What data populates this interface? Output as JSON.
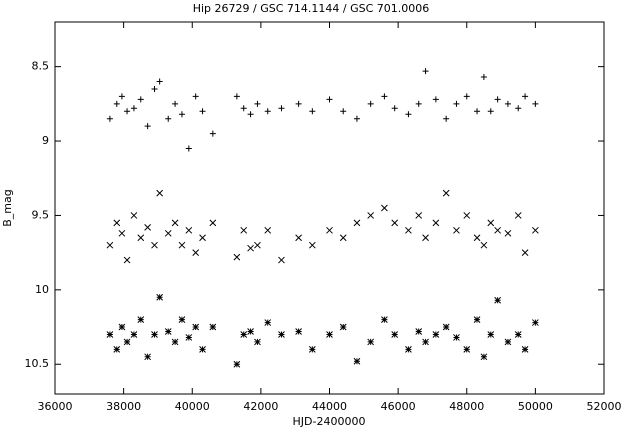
{
  "chart_data": {
    "type": "scatter",
    "title": "Hip 26729 / GSC 714.1144 / GSC 701.0006",
    "xlabel": "HJD-2400000",
    "ylabel": "B_mag",
    "xlim": [
      36000,
      52000
    ],
    "xticks": [
      36000,
      38000,
      40000,
      42000,
      44000,
      46000,
      48000,
      50000,
      52000
    ],
    "ylim": [
      8.2,
      10.7
    ],
    "yticks": [
      8.5,
      9,
      9.5,
      10,
      10.5
    ],
    "y_inverted": true,
    "grid": false,
    "series": [
      {
        "marker": "plus",
        "color": "#000000",
        "x": [
          37600,
          37800,
          37950,
          38100,
          38300,
          38500,
          38700,
          38900,
          39050,
          39300,
          39500,
          39700,
          39900,
          40100,
          40300,
          40600,
          41300,
          41500,
          41700,
          41900,
          42200,
          42600,
          43100,
          43500,
          44000,
          44400,
          44800,
          45200,
          45600,
          45900,
          46300,
          46600,
          46800,
          47100,
          47400,
          47700,
          48000,
          48300,
          48500,
          48700,
          48900,
          49200,
          49500,
          49700,
          50000
        ],
        "values": [
          8.85,
          8.75,
          8.7,
          8.8,
          8.78,
          8.72,
          8.9,
          8.65,
          8.6,
          8.85,
          8.75,
          8.82,
          9.05,
          8.7,
          8.8,
          8.95,
          8.7,
          8.78,
          8.82,
          8.75,
          8.8,
          8.78,
          8.75,
          8.8,
          8.72,
          8.8,
          8.85,
          8.75,
          8.7,
          8.78,
          8.82,
          8.75,
          8.53,
          8.72,
          8.85,
          8.75,
          8.7,
          8.8,
          8.57,
          8.8,
          8.72,
          8.75,
          8.78,
          8.7,
          8.75
        ]
      },
      {
        "marker": "cross",
        "color": "#000000",
        "x": [
          37600,
          37800,
          37950,
          38100,
          38300,
          38500,
          38700,
          38900,
          39050,
          39300,
          39500,
          39700,
          39900,
          40100,
          40300,
          40600,
          41300,
          41500,
          41700,
          41900,
          42200,
          42600,
          43100,
          43500,
          44000,
          44400,
          44800,
          45200,
          45600,
          45900,
          46300,
          46600,
          46800,
          47100,
          47400,
          47700,
          48000,
          48300,
          48500,
          48700,
          48900,
          49200,
          49500,
          49700,
          50000
        ],
        "values": [
          9.7,
          9.55,
          9.62,
          9.8,
          9.5,
          9.65,
          9.58,
          9.7,
          9.35,
          9.62,
          9.55,
          9.7,
          9.6,
          9.75,
          9.65,
          9.55,
          9.78,
          9.6,
          9.72,
          9.7,
          9.6,
          9.8,
          9.65,
          9.7,
          9.6,
          9.65,
          9.55,
          9.5,
          9.45,
          9.55,
          9.6,
          9.5,
          9.65,
          9.55,
          9.35,
          9.6,
          9.5,
          9.65,
          9.7,
          9.55,
          9.6,
          9.62,
          9.5,
          9.75,
          9.6
        ]
      },
      {
        "marker": "star",
        "color": "#000000",
        "x": [
          37600,
          37800,
          37950,
          38100,
          38300,
          38500,
          38700,
          38900,
          39050,
          39300,
          39500,
          39700,
          39900,
          40100,
          40300,
          40600,
          41300,
          41500,
          41700,
          41900,
          42200,
          42600,
          43100,
          43500,
          44000,
          44400,
          44800,
          45200,
          45600,
          45900,
          46300,
          46600,
          46800,
          47100,
          47400,
          47700,
          48000,
          48300,
          48500,
          48700,
          48900,
          49200,
          49500,
          49700,
          50000
        ],
        "values": [
          10.3,
          10.4,
          10.25,
          10.35,
          10.3,
          10.2,
          10.45,
          10.3,
          10.05,
          10.28,
          10.35,
          10.2,
          10.32,
          10.25,
          10.4,
          10.25,
          10.5,
          10.3,
          10.28,
          10.35,
          10.22,
          10.3,
          10.28,
          10.4,
          10.3,
          10.25,
          10.48,
          10.35,
          10.2,
          10.3,
          10.4,
          10.28,
          10.35,
          10.3,
          10.25,
          10.32,
          10.4,
          10.2,
          10.45,
          10.3,
          10.07,
          10.35,
          10.3,
          10.4,
          10.22
        ]
      }
    ]
  }
}
